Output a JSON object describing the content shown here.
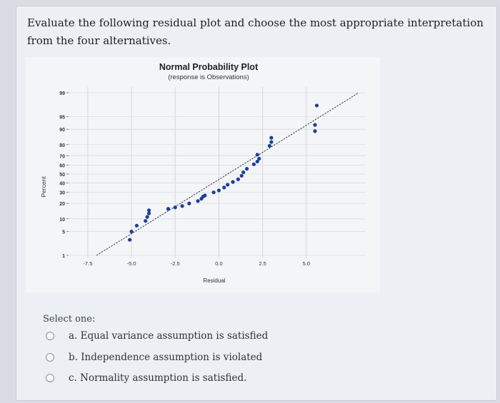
{
  "question": {
    "text": "Evaluate the following residual plot and choose the most appropriate interpretation from the four alternatives."
  },
  "chart_data": {
    "type": "scatter",
    "title": "Normal Probability Plot",
    "subtitle": "(response is Observations)",
    "xlabel": "Residual",
    "ylabel": "Percent",
    "xlim": [
      -8.6,
      8.4
    ],
    "xticks": [
      "-7.5",
      "-5.0",
      "-2.5",
      "0.0",
      "2.5",
      "5.0"
    ],
    "yticks": [
      "99",
      "95",
      "90",
      "80",
      "70",
      "60",
      "50",
      "40",
      "30",
      "20",
      "10",
      "5",
      "1"
    ],
    "grid": true,
    "fit_line": {
      "from": [
        -7.0,
        1
      ],
      "to": [
        8.0,
        99
      ]
    },
    "points": [
      {
        "x": -5.1,
        "y": 3
      },
      {
        "x": -5.0,
        "y": 5
      },
      {
        "x": -4.7,
        "y": 7
      },
      {
        "x": -4.2,
        "y": 9
      },
      {
        "x": -4.1,
        "y": 11
      },
      {
        "x": -4.0,
        "y": 13
      },
      {
        "x": -4.0,
        "y": 15
      },
      {
        "x": -2.9,
        "y": 16
      },
      {
        "x": -2.5,
        "y": 17
      },
      {
        "x": -2.1,
        "y": 18
      },
      {
        "x": -1.7,
        "y": 20
      },
      {
        "x": -1.2,
        "y": 22
      },
      {
        "x": -1.0,
        "y": 24
      },
      {
        "x": -0.9,
        "y": 26
      },
      {
        "x": -0.8,
        "y": 27
      },
      {
        "x": -0.3,
        "y": 30
      },
      {
        "x": 0.0,
        "y": 32
      },
      {
        "x": 0.3,
        "y": 35
      },
      {
        "x": 0.5,
        "y": 38
      },
      {
        "x": 0.8,
        "y": 41
      },
      {
        "x": 1.1,
        "y": 44
      },
      {
        "x": 1.3,
        "y": 48
      },
      {
        "x": 1.4,
        "y": 52
      },
      {
        "x": 1.6,
        "y": 56
      },
      {
        "x": 2.0,
        "y": 61
      },
      {
        "x": 2.2,
        "y": 64
      },
      {
        "x": 2.3,
        "y": 67
      },
      {
        "x": 2.2,
        "y": 71
      },
      {
        "x": 2.9,
        "y": 79
      },
      {
        "x": 3.0,
        "y": 82
      },
      {
        "x": 3.0,
        "y": 85
      },
      {
        "x": 5.5,
        "y": 89
      },
      {
        "x": 5.5,
        "y": 92
      },
      {
        "x": 5.6,
        "y": 97.5
      }
    ],
    "point_color": "#1c3f99",
    "line_color": "#3b3f45"
  },
  "select_one": "Select one:",
  "options": [
    {
      "label": "a. Equal variance assumption is satisfied"
    },
    {
      "label": "b. Independence assumption is violated"
    },
    {
      "label": "c. Normality assumption is satisfied."
    }
  ]
}
